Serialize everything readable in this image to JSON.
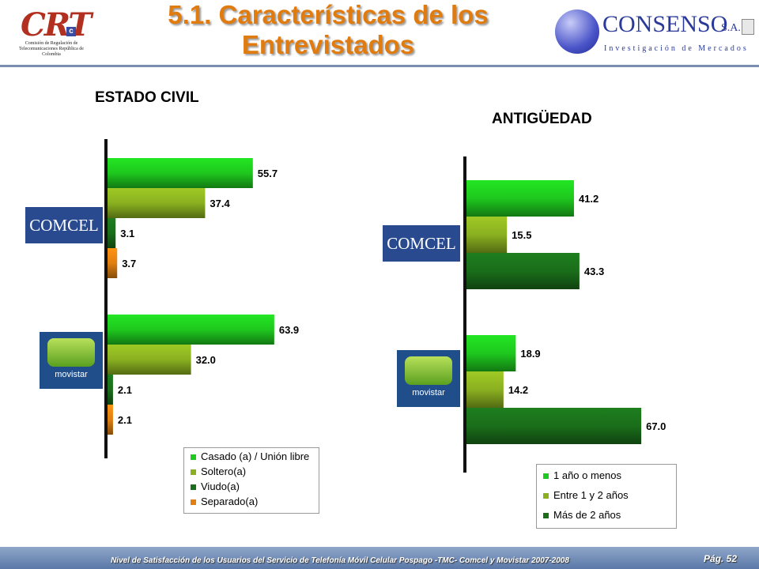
{
  "header": {
    "title_line1": "5.1. Características de los",
    "title_line2": "Entrevistados",
    "crt_mark": "CRT",
    "crt_badge": "c",
    "crt_subtitle": "Comisión de Regulación de Telecomunicaciones República de Colombia",
    "consenso_name": "CONSENSO",
    "consenso_suffix": "S.A.",
    "consenso_tagline": "Investigación de Mercados"
  },
  "brands": {
    "comcel": "COMCEL",
    "movistar": "movistar"
  },
  "colors": {
    "green": "#1ec81e",
    "olive": "#8ab020",
    "darkgreen": "#1a6e1a",
    "orange": "#e08010",
    "title_orange": "#e07b10"
  },
  "chart_data": [
    {
      "type": "bar",
      "orientation": "horizontal",
      "title": "ESTADO CIVIL",
      "groups": [
        "COMCEL",
        "movistar"
      ],
      "series": [
        {
          "name": "Casado (a) / Unión libre",
          "color": "#1ec81e",
          "values": [
            55.7,
            63.9
          ]
        },
        {
          "name": "Soltero(a)",
          "color": "#8ab020",
          "values": [
            37.4,
            32.0
          ]
        },
        {
          "name": "Viudo(a)",
          "color": "#1a6e1a",
          "values": [
            3.1,
            2.1
          ]
        },
        {
          "name": "Separado(a)",
          "color": "#e08010",
          "values": [
            3.7,
            2.1
          ]
        }
      ],
      "value_labels": [
        [
          "55.7",
          "37.4",
          "3.1",
          "3.7"
        ],
        [
          "63.9",
          "32.0",
          "2.1",
          "2.1"
        ]
      ],
      "legend_position": "bottom-right"
    },
    {
      "type": "bar",
      "orientation": "horizontal",
      "title": "ANTIGÜEDAD",
      "groups": [
        "COMCEL",
        "movistar"
      ],
      "series": [
        {
          "name": "1 año o menos",
          "color": "#1ec81e",
          "values": [
            41.2,
            18.9
          ]
        },
        {
          "name": "Entre 1 y 2 años",
          "color": "#8ab020",
          "values": [
            15.5,
            14.2
          ]
        },
        {
          "name": "Más de 2 años",
          "color": "#1a6e1a",
          "values": [
            43.3,
            67.0
          ]
        }
      ],
      "value_labels": [
        [
          "41.2",
          "15.5",
          "43.3"
        ],
        [
          "18.9",
          "14.2",
          "67.0"
        ]
      ],
      "legend_position": "bottom-right"
    }
  ],
  "footer": {
    "text": "Nivel de Satisfacción de los Usuarios del Servicio de Telefonía Móvil Celular Pospago -TMC- Comcel y Movistar 2007-2008",
    "page": "Pág. 52"
  }
}
